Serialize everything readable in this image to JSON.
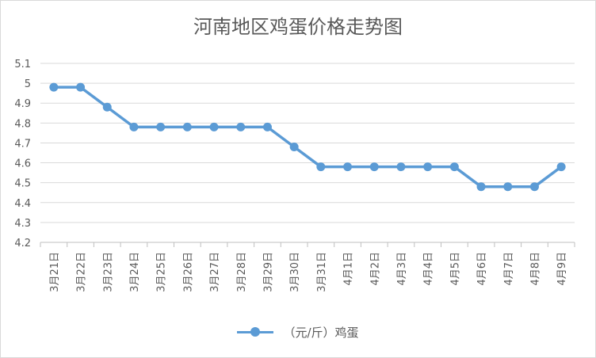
{
  "chart_data": {
    "type": "line",
    "title": "河南地区鸡蛋价格走势图",
    "categories": [
      "3月21日",
      "3月22日",
      "3月23日",
      "3月24日",
      "3月25日",
      "3月26日",
      "3月27日",
      "3月28日",
      "3月29日",
      "3月30日",
      "3月31日",
      "4月1日",
      "4月2日",
      "4月3日",
      "4月4日",
      "4月5日",
      "4月6日",
      "4月7日",
      "4月8日",
      "4月9日"
    ],
    "series": [
      {
        "name": "（元/斤）鸡蛋",
        "values": [
          4.98,
          4.98,
          4.88,
          4.78,
          4.78,
          4.78,
          4.78,
          4.78,
          4.78,
          4.68,
          4.58,
          4.58,
          4.58,
          4.58,
          4.58,
          4.58,
          4.48,
          4.48,
          4.48,
          4.58
        ]
      }
    ],
    "yticks": [
      "4.2",
      "4.3",
      "4.4",
      "4.5",
      "4.6",
      "4.7",
      "4.8",
      "4.9",
      "5",
      "5.1"
    ],
    "ylim": [
      4.2,
      5.1
    ],
    "grid": "horizontal",
    "legend_position": "bottom",
    "colors": {
      "series": "#5b9bd5",
      "grid": "#d9d9d9",
      "text": "#595959"
    }
  }
}
